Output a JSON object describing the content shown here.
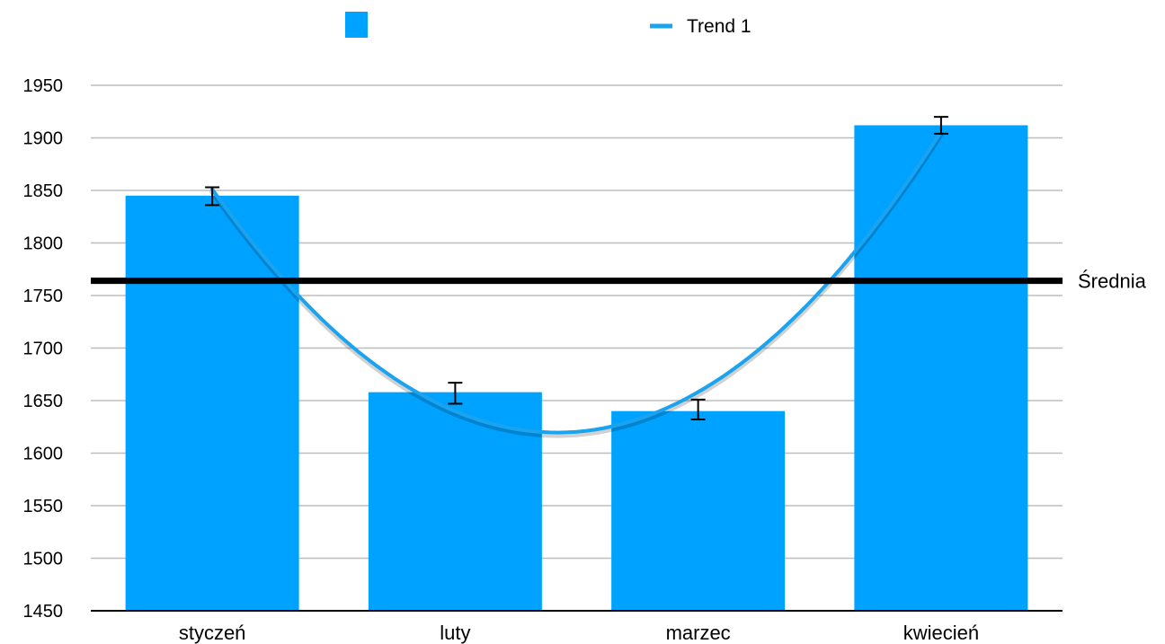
{
  "chart_data": {
    "type": "bar",
    "categories": [
      "styczeń",
      "luty",
      "marzec",
      "kwiecień"
    ],
    "series": [
      {
        "values": [
          1845,
          1658,
          1640,
          1912
        ],
        "color": "#00a2ff"
      }
    ],
    "error_bars": [
      {
        "low": 1836,
        "high": 1853
      },
      {
        "low": 1647,
        "high": 1667
      },
      {
        "low": 1632,
        "high": 1651
      },
      {
        "low": 1904,
        "high": 1920
      }
    ],
    "trendline": {
      "name": "Trend 1",
      "type": "polynomial",
      "color": "#1aa3ef"
    },
    "reference_line": {
      "label": "Średnia",
      "value": 1764,
      "color": "#000000"
    },
    "ylim": [
      1450,
      1950
    ],
    "yticks": [
      1450,
      1500,
      1550,
      1600,
      1650,
      1700,
      1750,
      1800,
      1850,
      1900,
      1950
    ],
    "grid": true,
    "legend_position": "top"
  }
}
